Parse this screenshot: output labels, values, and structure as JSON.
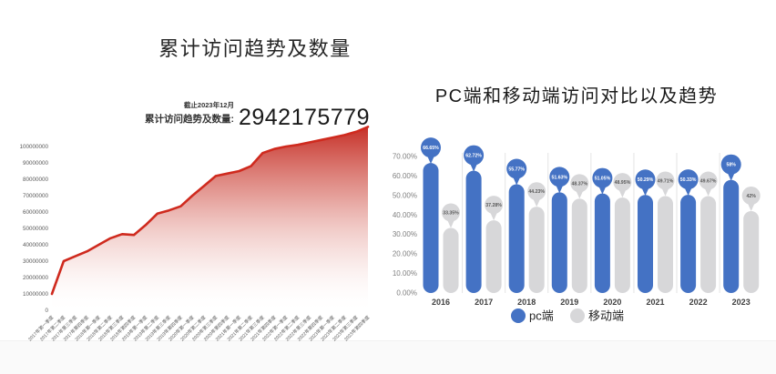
{
  "page": {
    "background": "#ffffff"
  },
  "left_chart": {
    "title": "累计访问趋势及数量",
    "stat": {
      "asof": "截止2023年12月",
      "label": "累计访问趋势及数量:",
      "value": "2942175779"
    }
  },
  "right_chart": {
    "title": "PC端和移动端访问对比以及趋势"
  },
  "chart_data": [
    {
      "type": "area",
      "title": "累计访问趋势及数量",
      "line_color": "#cf2a1e",
      "fill_top_color": "#c3251c",
      "grid": false,
      "ylim": [
        0,
        115000000
      ],
      "y_ticks": [
        "0",
        "10000000",
        "20000000",
        "30000000",
        "40000000",
        "50000000",
        "60000000",
        "70000000",
        "80000000",
        "90000000",
        "100000000"
      ],
      "categories": [
        "2017年第一季度",
        "2017年第二季度",
        "2017年第三季度",
        "2017年第四季度",
        "2018年第一季度",
        "2018年第二季度",
        "2018年第三季度",
        "2018年第四季度",
        "2019年第一季度",
        "2019年第二季度",
        "2019年第三季度",
        "2019年第四季度",
        "2020年第一季度",
        "2020年第二季度",
        "2020年第三季度",
        "2020年第四季度",
        "2021年第一季度",
        "2021年第二季度",
        "2021年第三季度",
        "2021年第四季度",
        "2022年第一季度",
        "2022年第二季度",
        "2022年第三季度",
        "2022年第四季度",
        "2023年第一季度",
        "2023年第二季度",
        "2023年第三季度",
        "2023年第四季度"
      ],
      "values": [
        10000000,
        30000000,
        33000000,
        36000000,
        40000000,
        44000000,
        46500000,
        46000000,
        52000000,
        59000000,
        61000000,
        63500000,
        70000000,
        76000000,
        82000000,
        83500000,
        85000000,
        88000000,
        96000000,
        98500000,
        100000000,
        101000000,
        102500000,
        104000000,
        105500000,
        107000000,
        109000000,
        112000000
      ],
      "annotation": {
        "asof": "截止2023年12月",
        "label": "累计访问趋势及数量:",
        "total": "2942175779"
      }
    },
    {
      "type": "bar",
      "title": "PC端和移动端访问对比以及趋势",
      "categories": [
        "2016",
        "2017",
        "2018",
        "2019",
        "2020",
        "2021",
        "2022",
        "2023"
      ],
      "series": [
        {
          "name": "pc端",
          "color": "#4472c4",
          "values": [
            66.65,
            62.72,
            55.77,
            51.63,
            51.05,
            50.29,
            50.33,
            58
          ],
          "labels": [
            "66.65%",
            "62.72%",
            "55.77%",
            "51.63%",
            "51.05%",
            "50.29%",
            "50.33%",
            "58%"
          ]
        },
        {
          "name": "移动端",
          "color": "#d7d7d9",
          "values": [
            33.35,
            37.28,
            44.23,
            48.37,
            48.95,
            49.71,
            49.67,
            42
          ],
          "labels": [
            "33.35%",
            "37.28%",
            "44.23%",
            "48.37%",
            "48.95%",
            "49.71%",
            "49.67%",
            "42%"
          ]
        }
      ],
      "y_ticks": [
        "0.00%",
        "10.00%",
        "20.00%",
        "30.00%",
        "40.00%",
        "50.00%",
        "60.00%",
        "70.00%"
      ],
      "ylim": [
        0,
        70
      ],
      "grid": false,
      "legend_position": "bottom"
    }
  ]
}
